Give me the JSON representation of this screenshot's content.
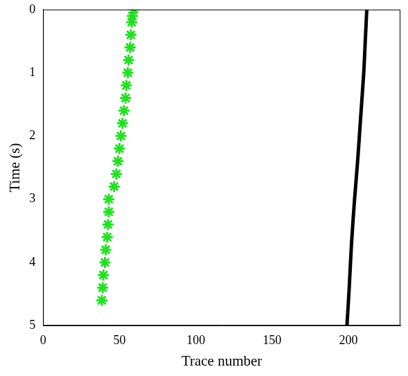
{
  "chart_data": {
    "type": "scatter",
    "xlabel": "Trace number",
    "ylabel": "Time (s)",
    "xlim": [
      0,
      234
    ],
    "ylim": [
      0,
      5
    ],
    "xticks": [
      0,
      50,
      100,
      150,
      200
    ],
    "yticks": [
      0,
      1,
      2,
      3,
      4,
      5
    ],
    "grid": false,
    "series": [
      {
        "type": "scatter",
        "color": "#22e022",
        "marker": "star",
        "x": [
          59.5,
          58.5,
          58,
          57.5,
          57,
          56,
          55.5,
          54.5,
          54,
          53,
          52,
          51,
          50,
          49,
          48,
          46.5,
          43,
          43,
          42.5,
          42,
          41,
          40.5,
          39.5,
          39,
          38.5
        ],
        "values": [
          0,
          0.1,
          0.2,
          0.4,
          0.6,
          0.8,
          1.0,
          1.2,
          1.4,
          1.6,
          1.8,
          2.0,
          2.2,
          2.4,
          2.6,
          2.8,
          3.0,
          3.2,
          3.4,
          3.6,
          3.8,
          4.0,
          4.2,
          4.4,
          4.6
        ]
      },
      {
        "type": "line",
        "color": "#000000",
        "line_style": "solid",
        "x": [
          212,
          211,
          210,
          208,
          206,
          204,
          202,
          200.5,
          199
        ],
        "values": [
          0,
          0.5,
          1,
          1.7,
          2.4,
          3,
          3.7,
          4.4,
          5
        ]
      }
    ]
  }
}
